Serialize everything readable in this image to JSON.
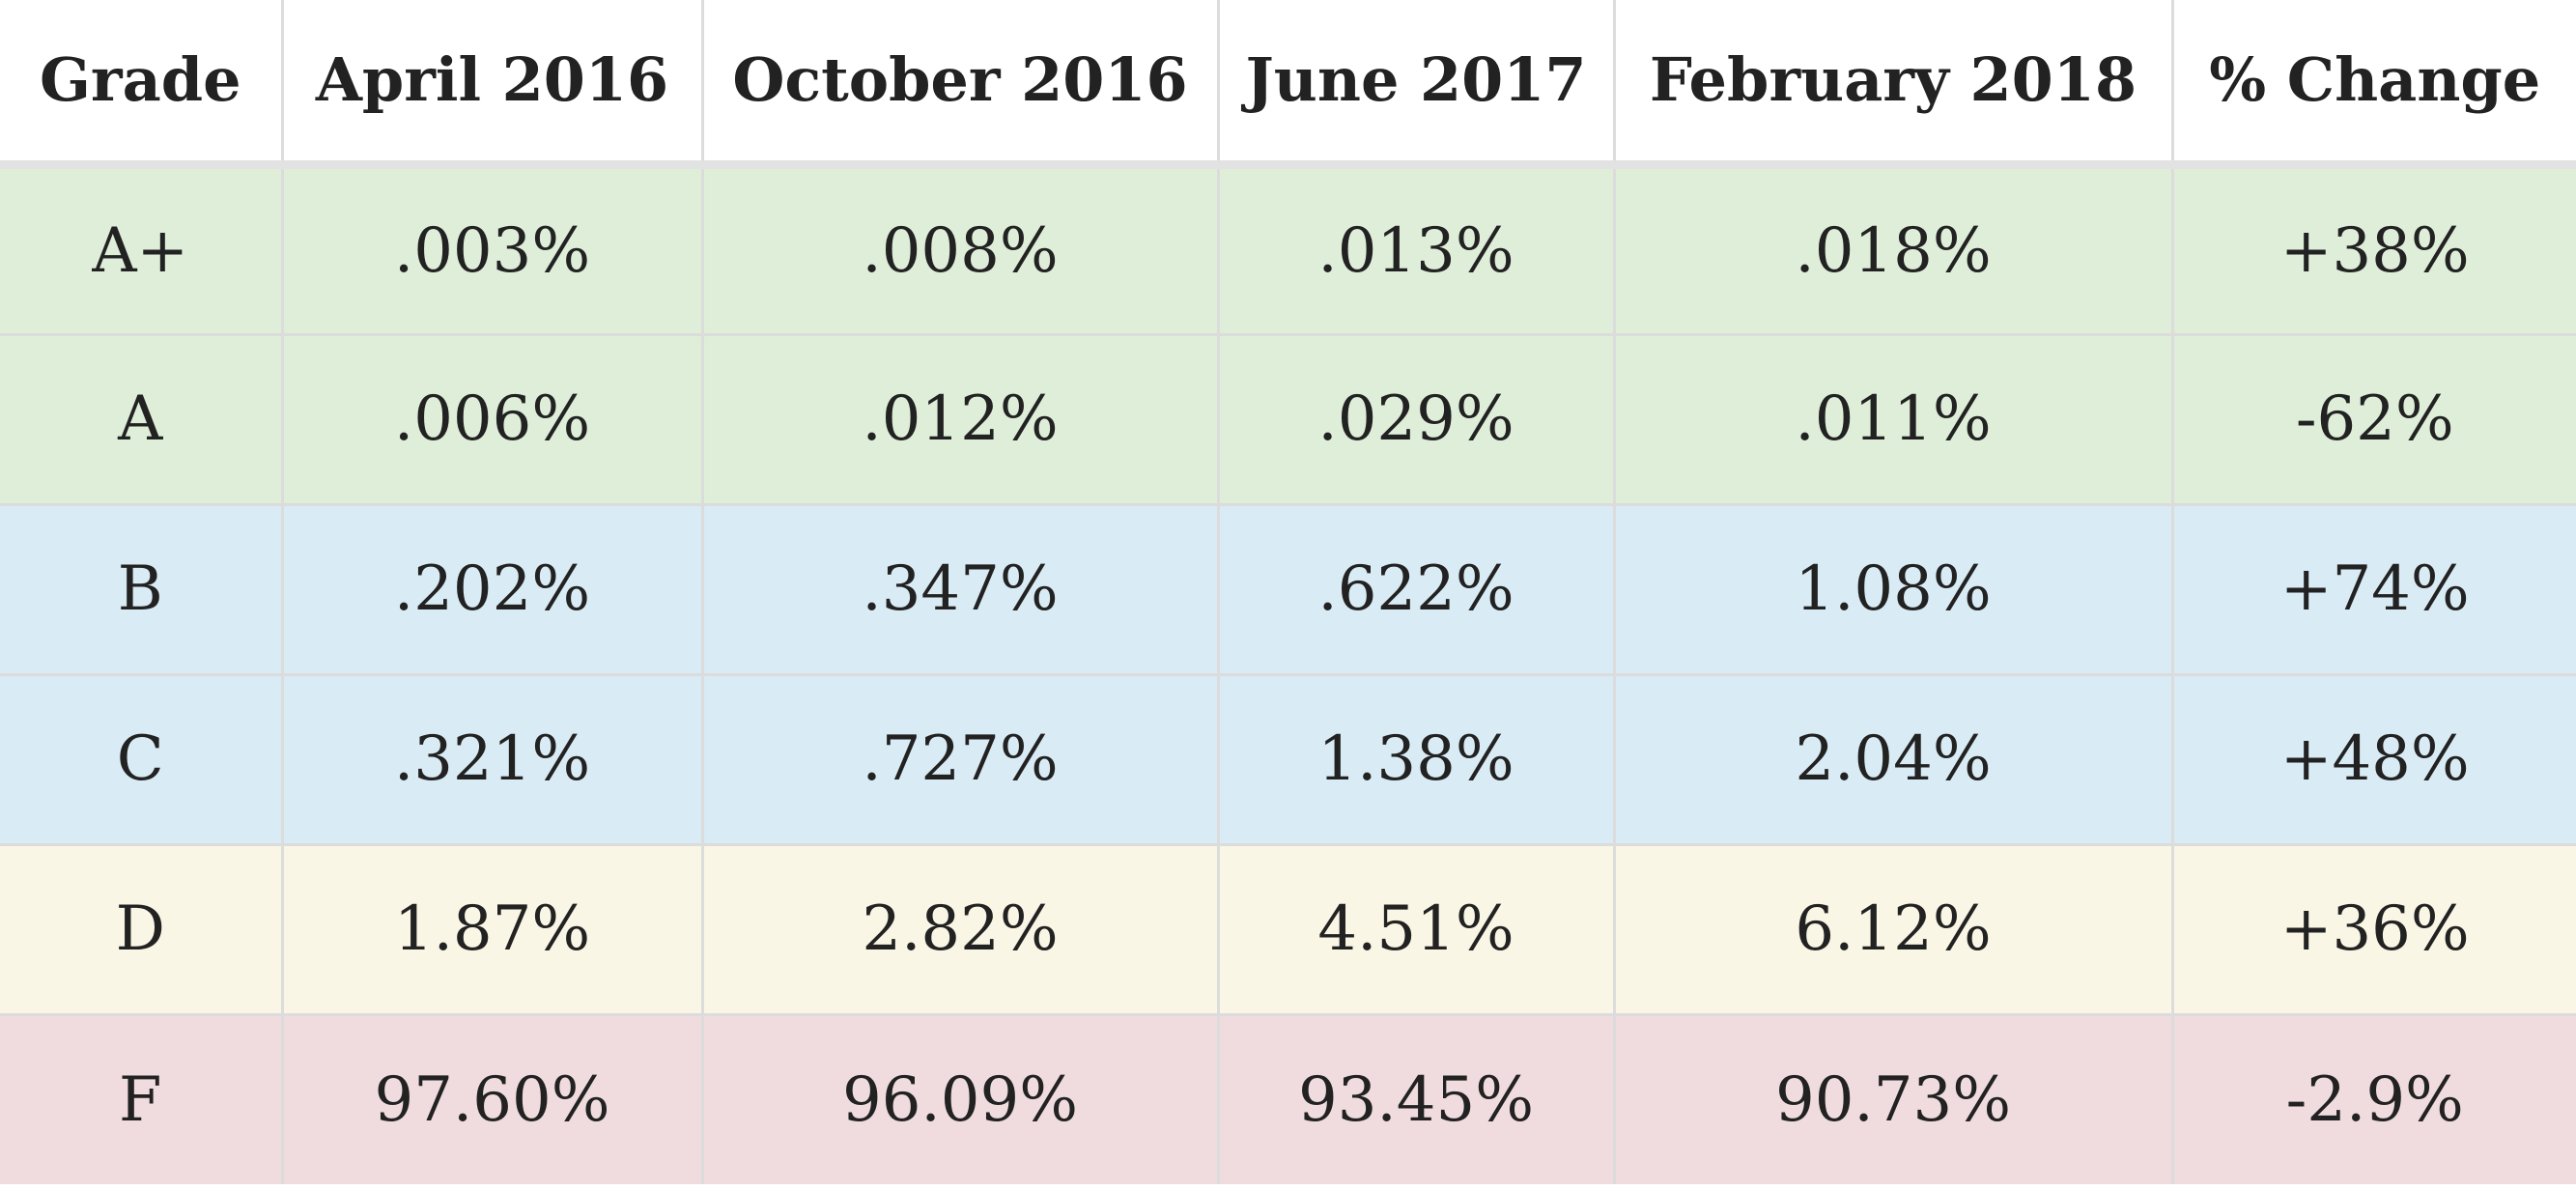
{
  "table": {
    "headers": [
      "Grade",
      "April 2016",
      "October 2016",
      "June 2017",
      "February 2018",
      "% Change"
    ],
    "rows": [
      {
        "grade": "A+",
        "values": [
          ".003%",
          ".008%",
          ".013%",
          ".018%",
          "+38%"
        ],
        "color": "#deeed9"
      },
      {
        "grade": "A",
        "values": [
          ".006%",
          ".012%",
          ".029%",
          ".011%",
          "-62%"
        ],
        "color": "#deeed9"
      },
      {
        "grade": "B",
        "values": [
          ".202%",
          ".347%",
          ".622%",
          "1.08%",
          "+74%"
        ],
        "color": "#d9ebf4"
      },
      {
        "grade": "C",
        "values": [
          ".321%",
          ".727%",
          "1.38%",
          "2.04%",
          "+48%"
        ],
        "color": "#d9ebf4"
      },
      {
        "grade": "D",
        "values": [
          "1.87%",
          "2.82%",
          "4.51%",
          "6.12%",
          "+36%"
        ],
        "color": "#faf6e5"
      },
      {
        "grade": "F",
        "values": [
          "97.60%",
          "96.09%",
          "93.45%",
          "90.73%",
          "-2.9%"
        ],
        "color": "#f0dcdf"
      }
    ]
  }
}
